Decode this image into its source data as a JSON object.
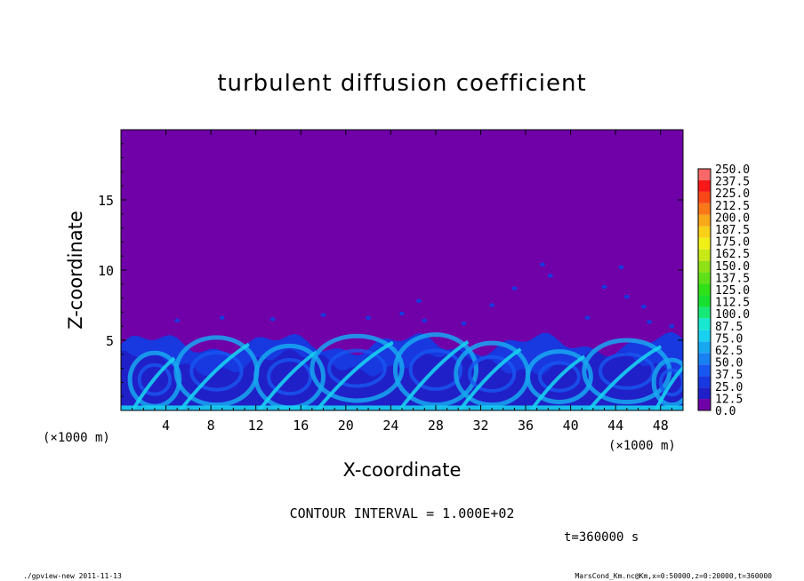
{
  "chart_data": {
    "type": "heatmap",
    "title": "turbulent diffusion coefficient",
    "xlabel": "X-coordinate",
    "ylabel": "Z-coordinate",
    "x_unit": "(×1000 m)",
    "y_unit": "(×1000 m)",
    "xlim": [
      0,
      50
    ],
    "ylim": [
      0,
      20
    ],
    "x_ticks": [
      4,
      8,
      12,
      16,
      20,
      24,
      28,
      32,
      36,
      40,
      44,
      48
    ],
    "y_ticks": [
      5,
      10,
      15
    ],
    "contour_interval": "CONTOUR INTERVAL = 1.000E+02",
    "time_label": "t=360000 s",
    "colorbar": {
      "levels": [
        "0.0",
        "12.5",
        "25.0",
        "37.5",
        "50.0",
        "62.5",
        "75.0",
        "87.5",
        "100.0",
        "112.5",
        "125.0",
        "137.5",
        "150.0",
        "162.5",
        "175.0",
        "187.5",
        "200.0",
        "212.5",
        "225.0",
        "237.5",
        "250.0"
      ],
      "colors": [
        "#7000a8",
        "#2020c8",
        "#1838e0",
        "#1858f0",
        "#1880f0",
        "#18a8f0",
        "#18d0f0",
        "#18e8d0",
        "#18e878",
        "#18e030",
        "#30e018",
        "#60e018",
        "#90e018",
        "#c8e818",
        "#f0f018",
        "#f8d018",
        "#f8a818",
        "#f87818",
        "#f84818",
        "#f81818",
        "#f86868"
      ]
    },
    "background_value": 0.0,
    "boundary_layer_top_km": 5.5
  },
  "footer": {
    "left": "./gpview-new   2011-11-13",
    "right": "MarsCond_Km.nc@Km,x=0:50000,z=0:20000,t=360000"
  }
}
